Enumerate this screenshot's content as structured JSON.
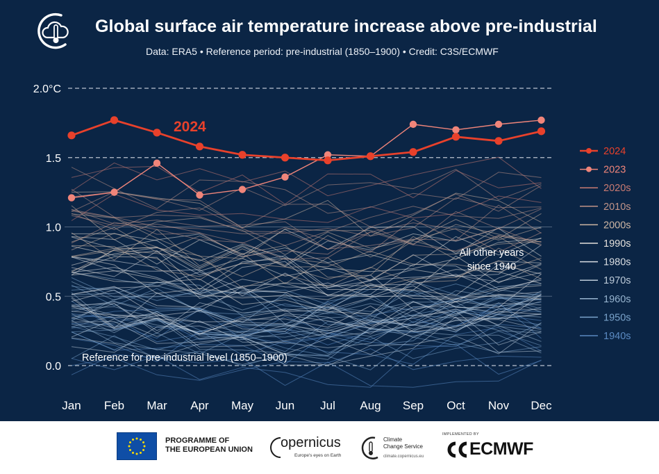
{
  "header": {
    "title": "Global surface air temperature increase above pre-industrial",
    "subtitle": "Data: ERA5 • Reference period: pre-industrial (1850–1900) • Credit: C3S/ECMWF"
  },
  "chart_data": {
    "type": "line",
    "title": "Global surface air temperature increase above pre-industrial",
    "ylabel": "",
    "ylim": [
      -0.25,
      2.05
    ],
    "ytick_labels": [
      "2.0°C",
      "1.5",
      "1.0",
      "0.5",
      "0.0"
    ],
    "yticks": [
      2.0,
      1.5,
      1.0,
      0.5,
      0.0
    ],
    "categories": [
      "Jan",
      "Feb",
      "Mar",
      "Apr",
      "May",
      "Jun",
      "Jul",
      "Aug",
      "Sep",
      "Oct",
      "Nov",
      "Dec"
    ],
    "grid": "dashed horizontal at 2.0, 1.5 and 0.0; solid at 1.0 and 0.5",
    "legend_position": "right",
    "series": [
      {
        "name": "2024",
        "color": "#e8412b",
        "values": [
          1.66,
          1.77,
          1.68,
          1.58,
          1.52,
          1.5,
          1.48,
          1.51,
          1.54,
          1.65,
          1.62,
          1.69
        ]
      },
      {
        "name": "2023",
        "color": "#f0857a",
        "values": [
          1.21,
          1.25,
          1.46,
          1.23,
          1.27,
          1.36,
          1.52,
          1.51,
          1.74,
          1.7,
          1.74,
          1.77
        ]
      }
    ],
    "decade_legend": [
      {
        "name": "2020s",
        "color": "#c97a72"
      },
      {
        "name": "2010s",
        "color": "#c09388"
      },
      {
        "name": "2000s",
        "color": "#cdb6a4"
      },
      {
        "name": "1990s",
        "color": "#e4e0db"
      },
      {
        "name": "1980s",
        "color": "#d9dde2"
      },
      {
        "name": "1970s",
        "color": "#bccad8"
      },
      {
        "name": "1960s",
        "color": "#97b4cf"
      },
      {
        "name": "1950s",
        "color": "#7aa3cb"
      },
      {
        "name": "1940s",
        "color": "#5b8ac2"
      }
    ],
    "annotations": {
      "highlight_label": "2024",
      "others_label_line1": "All other years",
      "others_label_line2": "since 1940",
      "reference_label": "Reference for pre-industrial level (1850–1900)"
    }
  },
  "footer": {
    "eu_line1": "PROGRAMME OF",
    "eu_line2": "THE EUROPEAN UNION",
    "copernicus_word": "opernicus",
    "copernicus_tagline": "Europe's eyes on Earth",
    "c3s_line1": "Climate",
    "c3s_line2": "Change Service",
    "c3s_url": "climate.copernicus.eu",
    "ecmwf_implemented": "IMPLEMENTED BY",
    "ecmwf_word": "ECMWF"
  }
}
